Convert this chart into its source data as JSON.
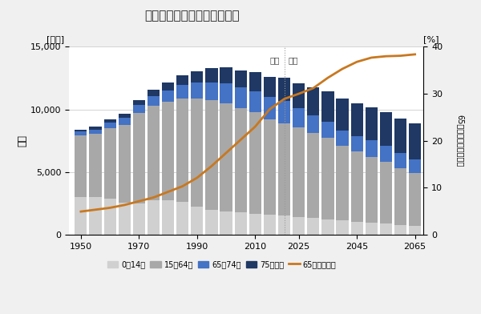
{
  "title": "年齢別人口の推移と将来推計",
  "ylabel_left": "人口",
  "ylabel_left_unit": "[万人]",
  "ylabel_right_unit": "[%]",
  "ylabel_right": "65歳以上が占める割合",
  "years": [
    1950,
    1955,
    1960,
    1965,
    1970,
    1975,
    1980,
    1985,
    1990,
    1995,
    2000,
    2005,
    2010,
    2015,
    2020,
    2025,
    2030,
    2035,
    2040,
    2045,
    2050,
    2055,
    2060,
    2065
  ],
  "age_0_14": [
    2979,
    3012,
    2843,
    2553,
    2515,
    2722,
    2751,
    2603,
    2249,
    1990,
    1847,
    1759,
    1684,
    1595,
    1503,
    1407,
    1321,
    1213,
    1121,
    1033,
    943,
    855,
    773,
    700
  ],
  "age_15_64": [
    4930,
    5017,
    5674,
    6236,
    7212,
    7581,
    7883,
    8251,
    8590,
    8726,
    8622,
    8344,
    8103,
    7629,
    7406,
    7170,
    6766,
    6494,
    5978,
    5583,
    5275,
    4930,
    4529,
    4212
  ],
  "age_65_74": [
    310,
    375,
    431,
    518,
    616,
    786,
    889,
    1081,
    1293,
    1466,
    1596,
    1637,
    1645,
    1752,
    1747,
    1497,
    1424,
    1328,
    1219,
    1239,
    1317,
    1304,
    1233,
    1125
  ],
  "age_75plus": [
    175,
    215,
    264,
    330,
    393,
    488,
    643,
    784,
    924,
    1114,
    1310,
    1393,
    1557,
    1612,
    1872,
    2023,
    2278,
    2401,
    2559,
    2613,
    2612,
    2684,
    2763,
    2830
  ],
  "ratio_65plus": [
    4.9,
    5.3,
    5.7,
    6.3,
    7.1,
    7.9,
    9.1,
    10.3,
    12.1,
    14.6,
    17.4,
    20.2,
    23.0,
    26.7,
    28.9,
    30.0,
    31.2,
    33.4,
    35.3,
    36.8,
    37.7,
    38.0,
    38.1,
    38.4
  ],
  "colors": {
    "age_0_14": "#d0d0d0",
    "age_15_64": "#a8a8a8",
    "age_65_74": "#4472c4",
    "age_75plus": "#1f3864",
    "ratio_line": "#c87820"
  },
  "divider_year": 2020,
  "jisseki_label": "実績",
  "suitei_label": "推定",
  "ylim_left": [
    0,
    15000
  ],
  "ylim_right": [
    0,
    40
  ],
  "background_color": "#f0f0f0",
  "plot_bg_color": "#ffffff",
  "bar_width": 4.2,
  "xticks": [
    1950,
    1970,
    1990,
    2010,
    2025,
    2045,
    2065
  ],
  "legend_labels": [
    "0～14歳",
    "15～64歳",
    "65～74歳",
    "75歳以上",
    "65歳以上割合"
  ]
}
